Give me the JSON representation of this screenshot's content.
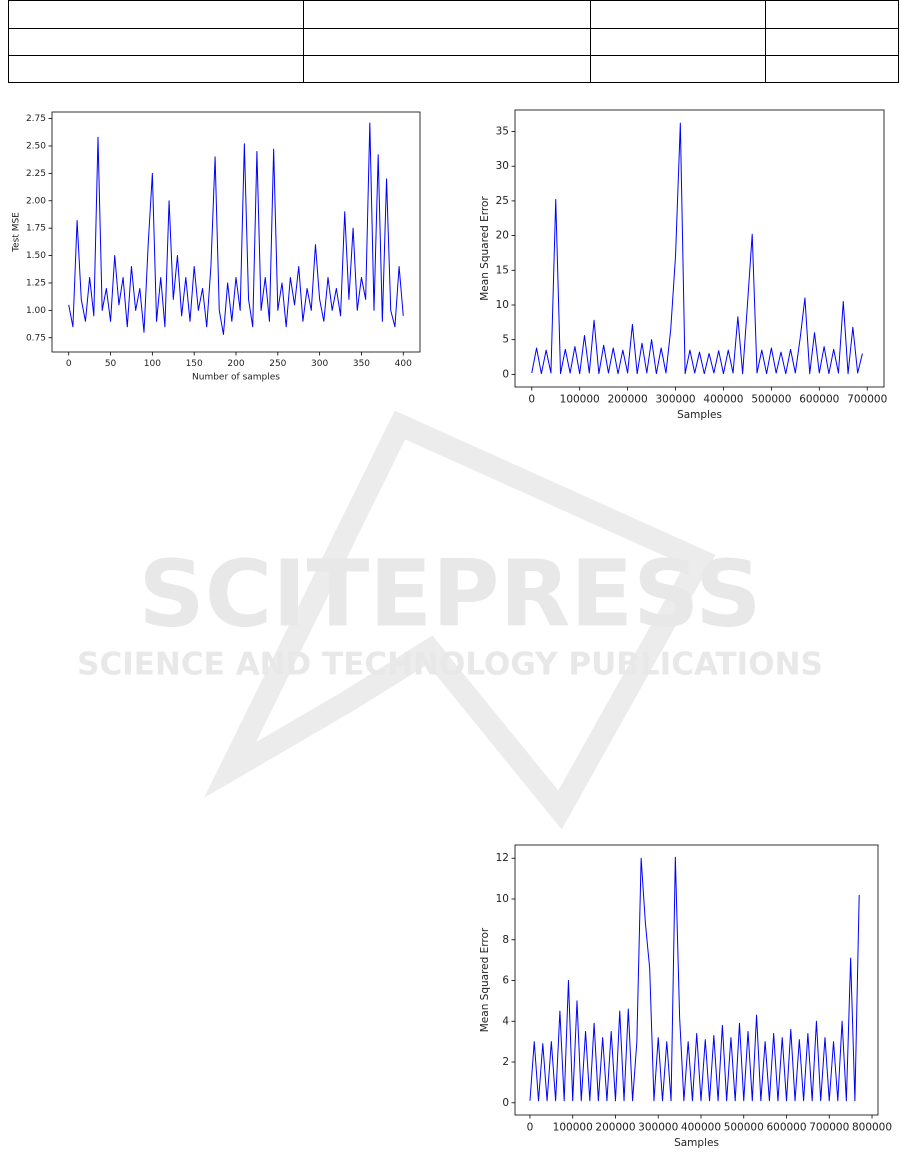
{
  "watermark": {
    "title": "SCITEPRESS",
    "subtitle": "SCIENCE AND TECHNOLOGY PUBLICATIONS"
  },
  "chart_data": [
    {
      "type": "line",
      "xlabel": "Number of samples",
      "ylabel": "Test MSE",
      "color": "#0000ff",
      "x": [
        0,
        5,
        10,
        15,
        20,
        25,
        30,
        35,
        40,
        45,
        50,
        55,
        60,
        65,
        70,
        75,
        80,
        85,
        90,
        95,
        100,
        105,
        110,
        115,
        120,
        125,
        130,
        135,
        140,
        145,
        150,
        155,
        160,
        165,
        170,
        175,
        180,
        185,
        190,
        195,
        200,
        205,
        210,
        215,
        220,
        225,
        230,
        235,
        240,
        245,
        250,
        255,
        260,
        265,
        270,
        275,
        280,
        285,
        290,
        295,
        300,
        305,
        310,
        315,
        320,
        325,
        330,
        335,
        340,
        345,
        350,
        355,
        360,
        365,
        370,
        375,
        380,
        385,
        390,
        395,
        400
      ],
      "values": [
        1.05,
        0.85,
        1.82,
        1.1,
        0.9,
        1.3,
        0.95,
        2.58,
        1.0,
        1.2,
        0.9,
        1.5,
        1.05,
        1.3,
        0.85,
        1.4,
        1.0,
        1.2,
        0.8,
        1.6,
        2.25,
        0.9,
        1.3,
        0.85,
        2.0,
        1.1,
        1.5,
        0.95,
        1.3,
        0.9,
        1.4,
        1.0,
        1.2,
        0.85,
        1.4,
        2.4,
        1.0,
        0.78,
        1.25,
        0.9,
        1.3,
        1.0,
        2.52,
        1.1,
        0.85,
        2.45,
        1.0,
        1.3,
        0.9,
        2.47,
        1.0,
        1.25,
        0.85,
        1.3,
        1.05,
        1.4,
        0.9,
        1.2,
        1.0,
        1.6,
        1.1,
        0.9,
        1.3,
        1.0,
        1.2,
        0.95,
        1.9,
        1.1,
        1.75,
        1.0,
        1.3,
        1.1,
        2.71,
        1.0,
        2.42,
        0.9,
        2.2,
        1.0,
        0.85,
        1.4,
        0.95
      ],
      "xlim": [
        -20,
        420
      ],
      "ylim": [
        0.62,
        2.81
      ],
      "xticks": [
        0,
        50,
        100,
        150,
        200,
        250,
        300,
        350,
        400
      ],
      "yticks": [
        0.75,
        {
          "value": 1,
          "label": "1.00"
        },
        1.25,
        {
          "value": 1.5,
          "label": "1.50"
        },
        1.75,
        {
          "value": 2,
          "label": "2.00"
        },
        2.25,
        {
          "value": 2.5,
          "label": "2.50"
        },
        2.75
      ]
    },
    {
      "type": "line",
      "xlabel": "Samples",
      "ylabel": "Mean Squared Error",
      "color": "#0000ff",
      "x": [
        0,
        10000,
        20000,
        30000,
        40000,
        50000,
        60000,
        70000,
        80000,
        90000,
        100000,
        110000,
        120000,
        130000,
        140000,
        150000,
        160000,
        170000,
        180000,
        190000,
        200000,
        210000,
        220000,
        230000,
        240000,
        250000,
        260000,
        270000,
        280000,
        290000,
        300000,
        310000,
        320000,
        330000,
        340000,
        350000,
        360000,
        370000,
        380000,
        390000,
        400000,
        410000,
        420000,
        430000,
        440000,
        450000,
        460000,
        470000,
        480000,
        490000,
        500000,
        510000,
        520000,
        530000,
        540000,
        550000,
        560000,
        570000,
        580000,
        590000,
        600000,
        610000,
        620000,
        630000,
        640000,
        650000,
        660000,
        670000,
        680000,
        690000
      ],
      "values": [
        0.2,
        3.8,
        0.1,
        3.5,
        0.2,
        25.2,
        0.1,
        3.6,
        0.2,
        4.0,
        0.1,
        5.6,
        0.2,
        7.8,
        0.1,
        4.2,
        0.2,
        3.8,
        0.1,
        3.5,
        0.2,
        7.2,
        0.1,
        4.5,
        0.2,
        5.0,
        0.1,
        3.8,
        0.2,
        6.5,
        17.1,
        36.2,
        0.1,
        3.5,
        0.2,
        3.2,
        0.1,
        3.0,
        0.2,
        3.4,
        0.1,
        3.5,
        0.2,
        8.3,
        0.1,
        10.0,
        20.2,
        0.2,
        3.5,
        0.1,
        3.8,
        0.2,
        3.2,
        0.1,
        3.6,
        0.2,
        5.2,
        11.0,
        0.1,
        6.0,
        0.2,
        4.0,
        0.1,
        3.6,
        0.2,
        10.5,
        0.1,
        6.8,
        0.2,
        3.0
      ],
      "xlim": [
        -35000,
        735000
      ],
      "ylim": [
        -1.82,
        38.1
      ],
      "xticks": [
        0,
        100000,
        200000,
        300000,
        400000,
        500000,
        600000,
        700000
      ],
      "yticks": [
        0,
        5,
        10,
        15,
        20,
        25,
        30,
        35
      ]
    },
    {
      "type": "line",
      "xlabel": "Samples",
      "ylabel": "Mean Squared Error",
      "color": "#0000ff",
      "x": [
        0,
        10000,
        20000,
        30000,
        40000,
        50000,
        60000,
        70000,
        80000,
        90000,
        100000,
        110000,
        120000,
        130000,
        140000,
        150000,
        160000,
        170000,
        180000,
        190000,
        200000,
        210000,
        220000,
        230000,
        240000,
        250000,
        260000,
        270000,
        280000,
        290000,
        300000,
        310000,
        320000,
        330000,
        340000,
        350000,
        360000,
        370000,
        380000,
        390000,
        400000,
        410000,
        420000,
        430000,
        440000,
        450000,
        460000,
        470000,
        480000,
        490000,
        500000,
        510000,
        520000,
        530000,
        540000,
        550000,
        560000,
        570000,
        580000,
        590000,
        600000,
        610000,
        620000,
        630000,
        640000,
        650000,
        660000,
        670000,
        680000,
        690000,
        700000,
        710000,
        720000,
        730000,
        740000,
        750000,
        760000,
        770000
      ],
      "values": [
        0.1,
        3.0,
        0.1,
        2.9,
        0.1,
        3.0,
        0.1,
        4.5,
        0.1,
        6.0,
        0.1,
        5.0,
        0.1,
        3.5,
        0.1,
        3.9,
        0.1,
        3.2,
        0.1,
        3.5,
        0.1,
        4.5,
        0.1,
        4.6,
        0.1,
        3.0,
        12.0,
        8.8,
        6.6,
        0.1,
        3.2,
        0.1,
        3.0,
        0.1,
        12.05,
        4.2,
        0.1,
        3.0,
        0.1,
        3.4,
        0.1,
        3.1,
        0.1,
        3.3,
        0.1,
        3.8,
        0.1,
        3.2,
        0.1,
        3.9,
        0.1,
        3.5,
        0.1,
        4.3,
        0.1,
        3.0,
        0.1,
        3.4,
        0.1,
        3.2,
        0.1,
        3.6,
        0.1,
        3.1,
        0.1,
        3.4,
        0.1,
        4.0,
        0.1,
        3.2,
        0.1,
        3.0,
        0.1,
        4.0,
        0.1,
        7.1,
        0.1,
        10.2
      ],
      "xlim": [
        -35000,
        814000
      ],
      "ylim": [
        -0.6,
        12.65
      ],
      "xticks": [
        0,
        100000,
        200000,
        300000,
        400000,
        500000,
        600000,
        700000,
        800000
      ],
      "yticks": [
        0,
        2,
        4,
        6,
        8,
        10,
        12
      ]
    }
  ]
}
